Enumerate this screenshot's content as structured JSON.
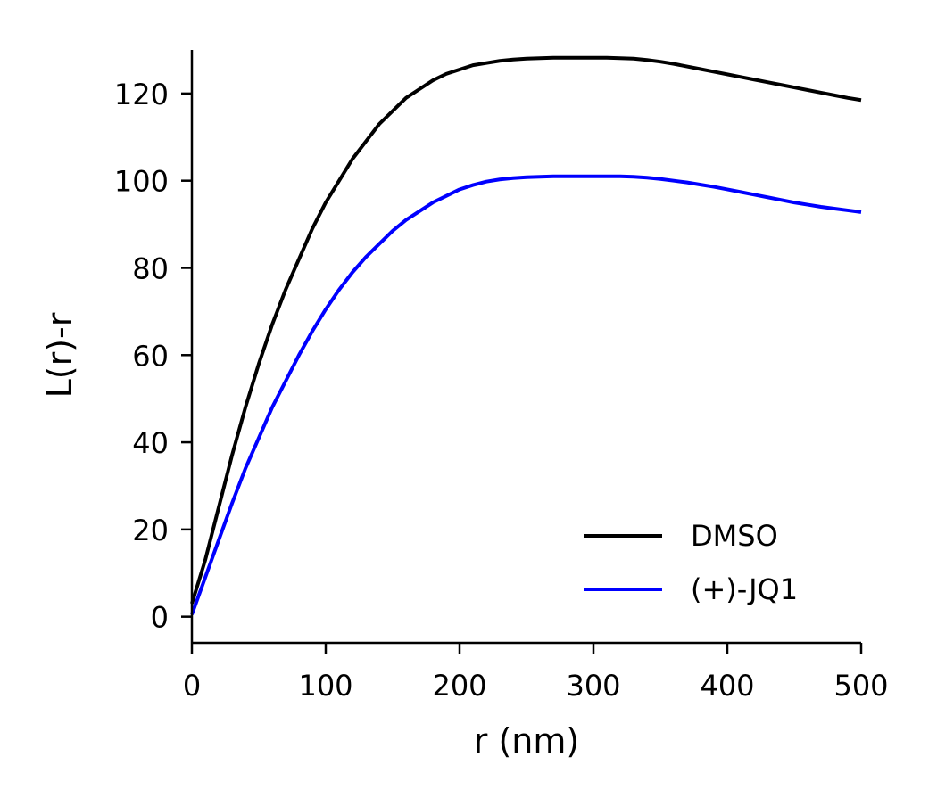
{
  "chart_data": {
    "type": "line",
    "title": "",
    "xlabel": "r (nm)",
    "ylabel": "L(r)-r",
    "xlim": [
      0,
      500
    ],
    "ylim": [
      -6,
      130
    ],
    "xticks": [
      0,
      100,
      200,
      300,
      400,
      500
    ],
    "yticks": [
      0,
      20,
      40,
      60,
      80,
      100,
      120
    ],
    "grid": false,
    "legend_position": "lower-right",
    "series": [
      {
        "name": "DMSO",
        "color": "#000000",
        "x": [
          0,
          10,
          20,
          30,
          40,
          50,
          60,
          70,
          80,
          90,
          100,
          110,
          120,
          130,
          140,
          150,
          160,
          170,
          180,
          190,
          200,
          210,
          220,
          230,
          240,
          250,
          260,
          270,
          280,
          290,
          300,
          310,
          320,
          330,
          340,
          350,
          360,
          370,
          380,
          390,
          400,
          410,
          420,
          430,
          440,
          450,
          460,
          470,
          480,
          490,
          500
        ],
        "y": [
          3,
          13,
          25,
          37,
          48,
          58,
          67,
          75,
          82,
          89,
          95,
          100,
          105,
          109,
          113,
          116,
          119,
          121,
          123,
          124.5,
          125.5,
          126.5,
          127,
          127.5,
          127.8,
          128,
          128.1,
          128.2,
          128.2,
          128.2,
          128.2,
          128.2,
          128.1,
          128,
          127.7,
          127.3,
          126.8,
          126.2,
          125.6,
          125,
          124.4,
          123.8,
          123.2,
          122.6,
          122,
          121.4,
          120.8,
          120.2,
          119.6,
          119,
          118.5
        ]
      },
      {
        "name": "(+)-JQ1",
        "color": "#0000ff",
        "x": [
          0,
          10,
          20,
          30,
          40,
          50,
          60,
          70,
          80,
          90,
          100,
          110,
          120,
          130,
          140,
          150,
          160,
          170,
          180,
          190,
          200,
          210,
          220,
          230,
          240,
          250,
          260,
          270,
          280,
          290,
          300,
          310,
          320,
          330,
          340,
          350,
          360,
          370,
          380,
          390,
          400,
          410,
          420,
          430,
          440,
          450,
          460,
          470,
          480,
          490,
          500
        ],
        "y": [
          0.5,
          9,
          17.5,
          26,
          34,
          41,
          48,
          54,
          60,
          65.5,
          70.5,
          75,
          79,
          82.5,
          85.5,
          88.5,
          91,
          93,
          95,
          96.5,
          98,
          99,
          99.8,
          100.3,
          100.6,
          100.8,
          100.9,
          101,
          101,
          101,
          101,
          101,
          101,
          100.9,
          100.7,
          100.4,
          100,
          99.6,
          99.1,
          98.6,
          98,
          97.4,
          96.8,
          96.2,
          95.6,
          95,
          94.5,
          94,
          93.6,
          93.2,
          92.8
        ]
      }
    ]
  }
}
